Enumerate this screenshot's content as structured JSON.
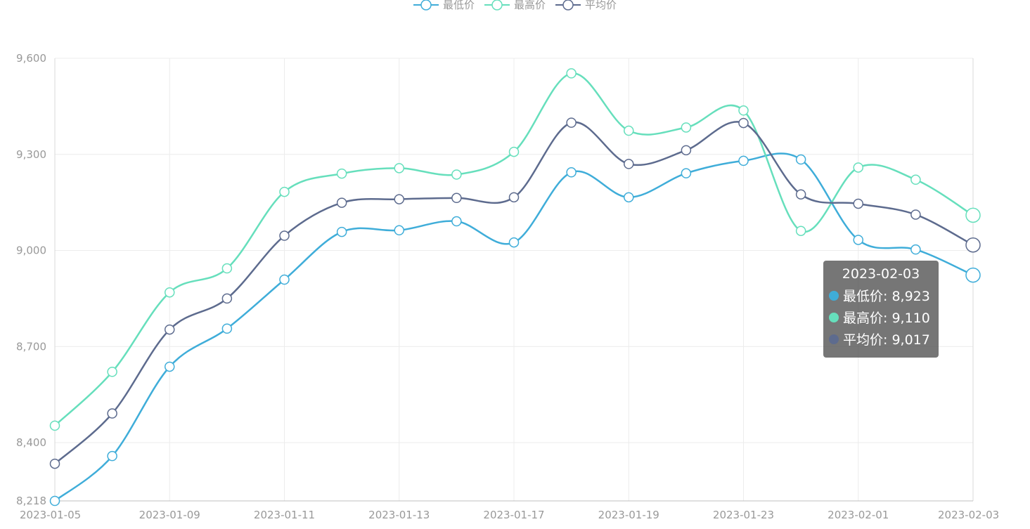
{
  "chart_data": {
    "type": "line",
    "smooth": true,
    "x": [
      "2023-01-05",
      "2023-01-07",
      "2023-01-09",
      "2023-01-10",
      "2023-01-11",
      "2023-01-12",
      "2023-01-13",
      "2023-01-15",
      "2023-01-17",
      "2023-01-18",
      "2023-01-19",
      "2023-01-20",
      "2023-01-23",
      "2023-01-24",
      "2023-02-01",
      "2023-02-02",
      "2023-02-03"
    ],
    "x_tick_labels": [
      "2023-01-05",
      "2023-01-09",
      "2023-01-11",
      "2023-01-13",
      "2023-01-17",
      "2023-01-19",
      "2023-01-23",
      "2023-02-01",
      "2023-02-03"
    ],
    "ylim": [
      8218,
      9600
    ],
    "y_ticks": [
      8218,
      8400,
      8700,
      9000,
      9300,
      9600
    ],
    "y_tick_labels": [
      "8,218",
      "8,400",
      "8,700",
      "9,000",
      "9,300",
      "9,600"
    ],
    "grid": true,
    "legend_position": "top-center",
    "series": [
      {
        "name": "最低价",
        "color": "#3fadd9",
        "values": [
          8218,
          8358,
          8637,
          8756,
          8909,
          9058,
          9063,
          9091,
          9025,
          9244,
          9166,
          9241,
          9280,
          9284,
          9033,
          9003,
          8923
        ]
      },
      {
        "name": "最高价",
        "color": "#66dfbc",
        "values": [
          8453,
          8621,
          8869,
          8944,
          9183,
          9240,
          9257,
          9237,
          9308,
          9553,
          9374,
          9384,
          9437,
          9061,
          9259,
          9221,
          9110
        ]
      },
      {
        "name": "平均价",
        "color": "#5d6b8e",
        "values": [
          8334,
          8491,
          8753,
          8850,
          9046,
          9149,
          9160,
          9164,
          9166,
          9399,
          9270,
          9313,
          9398,
          9175,
          9146,
          9112,
          9017
        ]
      }
    ]
  },
  "tooltip": {
    "title": "2023-02-03",
    "rows": [
      {
        "label": "最低价: 8,923",
        "color": "#3fadd9"
      },
      {
        "label": "最高价: 9,110",
        "color": "#66dfbc"
      },
      {
        "label": "平均价: 9,017",
        "color": "#5d6b8e"
      }
    ]
  }
}
